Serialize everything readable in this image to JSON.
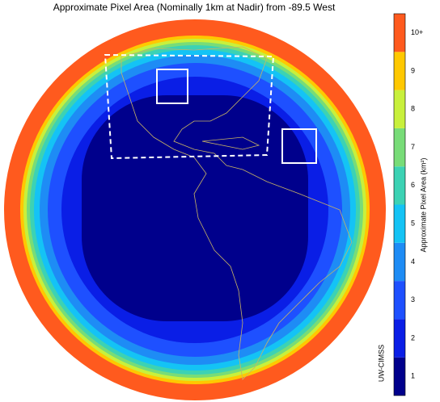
{
  "map": {
    "title": "Approximate Pixel Area (Nominally 1km at Nadir) from -89.5 West",
    "colorbar": {
      "label": "Approximate Pixel Area (km²)",
      "levels": [
        {
          "label": "1",
          "color": "#00008c"
        },
        {
          "label": "2",
          "color": "#0a1ee6"
        },
        {
          "label": "3",
          "color": "#1e50ff"
        },
        {
          "label": "4",
          "color": "#1e8cf5"
        },
        {
          "label": "5",
          "color": "#14c3f5"
        },
        {
          "label": "6",
          "color": "#3cd2b4"
        },
        {
          "label": "7",
          "color": "#78dc78"
        },
        {
          "label": "8",
          "color": "#c8f03c"
        },
        {
          "label": "9",
          "color": "#ffc800"
        },
        {
          "label": "10+",
          "color": "#ff5a1e"
        }
      ]
    },
    "credit": "UW-CIMSS"
  }
}
